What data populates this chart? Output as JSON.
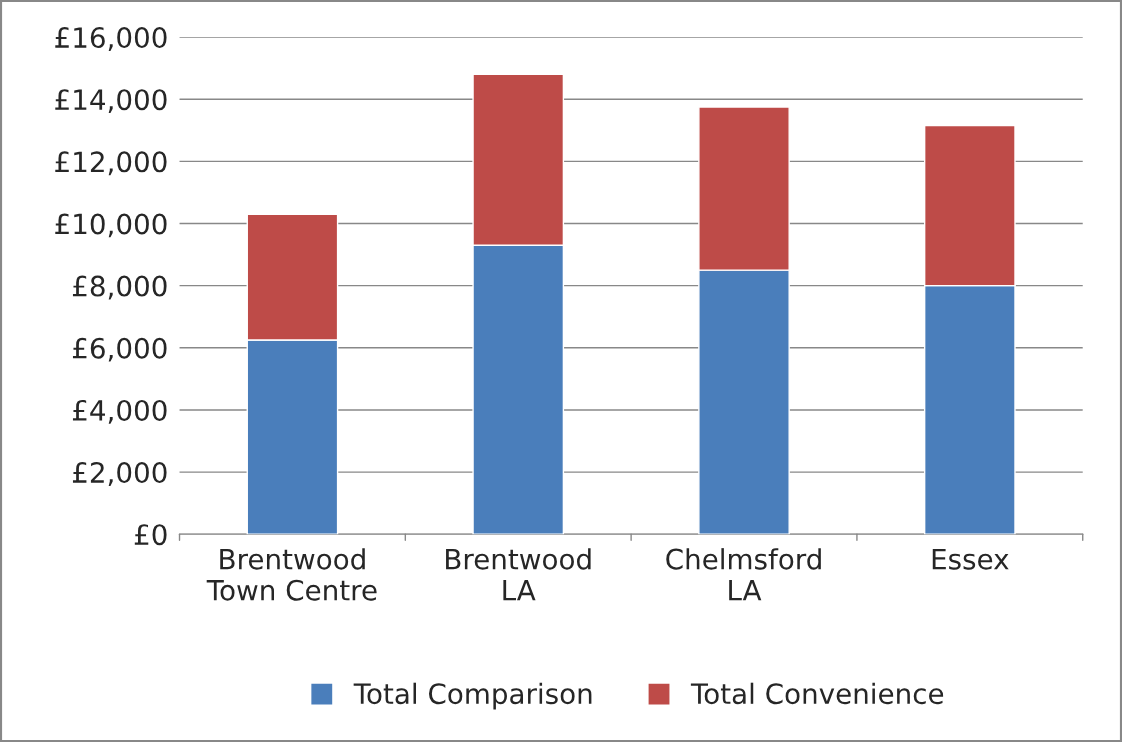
{
  "chart_data": {
    "type": "bar",
    "stacked": true,
    "categories": [
      "Brentwood\nTown Centre",
      "Brentwood\nLA",
      "Chelmsford\nLA",
      "Essex"
    ],
    "series": [
      {
        "name": "Total Comparison",
        "color": "#4a7ebb",
        "values": [
          6250,
          9300,
          8500,
          8000
        ]
      },
      {
        "name": "Total Convenience",
        "color": "#be4b48",
        "values": [
          4050,
          5500,
          5250,
          5150
        ]
      }
    ],
    "ylim": [
      0,
      16000
    ],
    "yticks": [
      {
        "value": 0,
        "label": "£0"
      },
      {
        "value": 2000,
        "label": "£2,000"
      },
      {
        "value": 4000,
        "label": "£4,000"
      },
      {
        "value": 6000,
        "label": "£6,000"
      },
      {
        "value": 8000,
        "label": "£8,000"
      },
      {
        "value": 10000,
        "label": "£10,000"
      },
      {
        "value": 12000,
        "label": "£12,000"
      },
      {
        "value": 14000,
        "label": "£14,000"
      },
      {
        "value": 16000,
        "label": "£16,000"
      }
    ],
    "grid": "y",
    "legend": "bottom"
  }
}
